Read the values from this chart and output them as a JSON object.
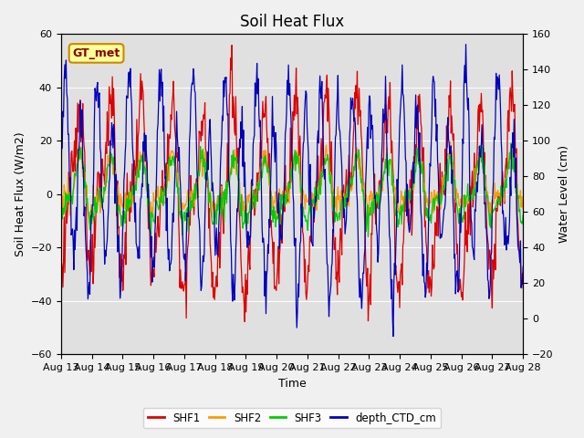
{
  "title": "Soil Heat Flux",
  "xlabel": "Time",
  "ylabel_left": "Soil Heat Flux (W/m2)",
  "ylabel_right": "Water Level (cm)",
  "annotation_text": "GT_met",
  "ylim_left": [
    -60,
    60
  ],
  "ylim_right": [
    -20,
    160
  ],
  "xtick_labels": [
    "Aug 13",
    "Aug 14",
    "Aug 15",
    "Aug 16",
    "Aug 17",
    "Aug 18",
    "Aug 19",
    "Aug 20",
    "Aug 21",
    "Aug 22",
    "Aug 23",
    "Aug 24",
    "Aug 25",
    "Aug 26",
    "Aug 27",
    "Aug 28"
  ],
  "colors": {
    "SHF1": "#dd0000",
    "SHF2": "#ff9900",
    "SHF3": "#00cc00",
    "depth_CTD_cm": "#0000bb"
  },
  "fig_bg_color": "#f0f0f0",
  "plot_bg_color": "#e0e0e0",
  "annotation_bg": "#ffff99",
  "annotation_border": "#cc8800",
  "annotation_text_color": "#880000",
  "grid_color": "#ffffff",
  "title_fontsize": 12,
  "axis_label_fontsize": 9,
  "tick_fontsize": 8
}
